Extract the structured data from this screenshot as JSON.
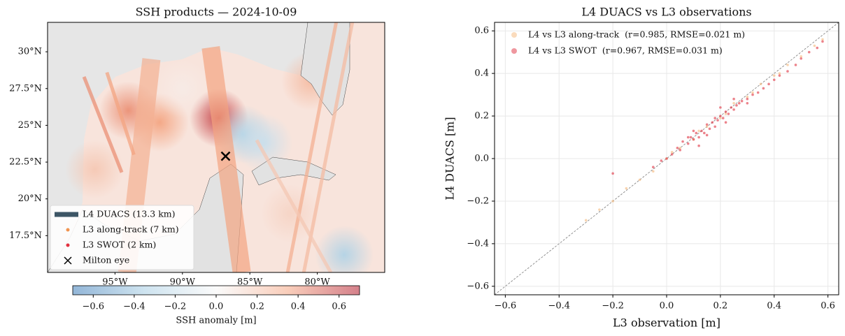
{
  "chart_data": [
    {
      "type": "map",
      "title": "SSH products — 2024-10-09",
      "xlim": [
        -100,
        -75
      ],
      "ylim": [
        15,
        32
      ],
      "xticks": [
        {
          "value": -95,
          "label": "95°W"
        },
        {
          "value": -90,
          "label": "90°W"
        },
        {
          "value": -85,
          "label": "85°W"
        },
        {
          "value": -80,
          "label": "80°W"
        }
      ],
      "yticks": [
        {
          "value": 17.5,
          "label": "17.5°N"
        },
        {
          "value": 20,
          "label": "20°N"
        },
        {
          "value": 22.5,
          "label": "22.5°N"
        },
        {
          "value": 25,
          "label": "25°N"
        },
        {
          "value": 27.5,
          "label": "27.5°N"
        },
        {
          "value": 30,
          "label": "30°N"
        }
      ],
      "anomalies": {
        "x": [
          -87.3,
          -91.7,
          -85.5,
          -84,
          -80.5,
          -94,
          -90,
          -78,
          -96.5,
          -82
        ],
        "y": [
          25.5,
          25.2,
          24.4,
          23.8,
          28,
          26,
          27.5,
          16.2,
          22,
          19
        ],
        "values": [
          0.6,
          0.35,
          -0.3,
          -0.2,
          0.25,
          0.4,
          0.05,
          -0.3,
          0.2,
          0.15
        ]
      },
      "swot_swaths": [
        {
          "lon": [
            -92.3,
            -94.1
          ],
          "lat": [
            29.5,
            15
          ],
          "value": 0.3
        },
        {
          "lon": [
            -87.9,
            -85.6
          ],
          "lat": [
            30.3,
            15
          ],
          "value": 0.35
        }
      ],
      "along_tracks": [
        {
          "lon": [
            -97.3,
            -94.5
          ],
          "lat": [
            28.3,
            21.8
          ],
          "value": 0.4
        },
        {
          "lon": [
            -95.6,
            -93.6
          ],
          "lat": [
            28.6,
            23
          ],
          "value": 0.35
        },
        {
          "lon": [
            -78.6,
            -82.2
          ],
          "lat": [
            32,
            15
          ],
          "value": 0.3
        },
        {
          "lon": [
            -77.4,
            -81
          ],
          "lat": [
            32,
            15
          ],
          "value": 0.25
        },
        {
          "lon": [
            -84.5,
            -79
          ],
          "lat": [
            24,
            15
          ],
          "value": 0.2
        }
      ],
      "eye": {
        "x": -86.8,
        "y": 22.9
      },
      "legend_loc": "lower left",
      "legend": [
        {
          "name": "L4 DUACS (13.3 km)",
          "color": "#3d5666",
          "marker": "line"
        },
        {
          "name": "L3 along-track (7 km)",
          "color": "#f09450",
          "marker": "dot"
        },
        {
          "name": "L3 SWOT (2 km)",
          "color": "#e2313f",
          "marker": "dot"
        },
        {
          "name": "Milton eye",
          "color": "#000000",
          "marker": "x"
        }
      ],
      "colorbar": {
        "label": "SSH anomaly [m]",
        "lim": [
          -0.7,
          0.7
        ],
        "ticks": [
          {
            "value": -0.6,
            "label": "−0.6"
          },
          {
            "value": -0.4,
            "label": "−0.4"
          },
          {
            "value": -0.2,
            "label": "−0.2"
          },
          {
            "value": 0,
            "label": "0.0"
          },
          0.2,
          0.4,
          0.6
        ]
      }
    },
    {
      "type": "scatter",
      "title": "L4 DUACS vs L3 observations",
      "xlabel": "L3 observation [m]",
      "ylabel": "L4 DUACS [m]",
      "xlim": [
        -0.64,
        0.64
      ],
      "ylim": [
        -0.64,
        0.64
      ],
      "xticks": [
        {
          "value": -0.6,
          "label": "−0.6"
        },
        {
          "value": -0.4,
          "label": "−0.4"
        },
        {
          "value": -0.2,
          "label": "−0.2"
        },
        {
          "value": 0,
          "label": "0.0"
        },
        0.2,
        0.4,
        0.6
      ],
      "yticks": [
        {
          "value": -0.6,
          "label": "−0.6"
        },
        {
          "value": -0.4,
          "label": "−0.4"
        },
        {
          "value": -0.2,
          "label": "−0.2"
        },
        {
          "value": 0,
          "label": "0.0"
        },
        0.2,
        0.4,
        0.6
      ],
      "grid": true,
      "identity_line": true,
      "legend_loc": "upper left",
      "series": [
        {
          "name": "L4 vs L3 along-track  (r=0.985, RMSE=0.021 m)",
          "color": "#f5b87a",
          "x": [
            -0.3,
            -0.25,
            -0.2,
            -0.15,
            -0.1,
            -0.05,
            0.0,
            0.05,
            0.1,
            0.15,
            0.2,
            0.25,
            0.3,
            0.35,
            0.4,
            0.45,
            0.5,
            0.55,
            0.58,
            0.02,
            0.12,
            0.22,
            0.32,
            0.42
          ],
          "values": [
            -0.29,
            -0.24,
            -0.2,
            -0.14,
            -0.1,
            -0.06,
            0.0,
            0.05,
            0.09,
            0.15,
            0.19,
            0.26,
            0.29,
            0.35,
            0.39,
            0.44,
            0.48,
            0.53,
            0.56,
            0.03,
            0.13,
            0.21,
            0.31,
            0.4
          ]
        },
        {
          "name": "L4 vs L3 SWOT  (r=0.967, RMSE=0.031 m)",
          "color": "#e03040",
          "x": [
            -0.05,
            -0.02,
            0.0,
            0.02,
            0.04,
            0.05,
            0.06,
            0.08,
            0.09,
            0.1,
            0.11,
            0.12,
            0.13,
            0.14,
            0.15,
            0.16,
            0.17,
            0.18,
            0.19,
            0.2,
            0.21,
            0.22,
            0.23,
            0.24,
            0.25,
            0.26,
            0.27,
            0.28,
            0.3,
            0.32,
            0.34,
            0.36,
            0.38,
            0.4,
            0.42,
            0.45,
            0.48,
            0.5,
            0.53,
            0.56,
            0.58,
            0.2,
            0.15,
            0.1,
            0.12,
            0.08,
            0.18,
            0.22,
            0.25,
            0.3,
            -0.2
          ],
          "values": [
            -0.04,
            -0.01,
            0.0,
            0.02,
            0.05,
            0.04,
            0.08,
            0.07,
            0.1,
            0.09,
            0.12,
            0.1,
            0.13,
            0.12,
            0.16,
            0.14,
            0.17,
            0.19,
            0.18,
            0.2,
            0.19,
            0.22,
            0.21,
            0.24,
            0.23,
            0.25,
            0.26,
            0.27,
            0.28,
            0.3,
            0.31,
            0.33,
            0.35,
            0.37,
            0.39,
            0.41,
            0.44,
            0.47,
            0.5,
            0.52,
            0.55,
            0.24,
            0.11,
            0.13,
            0.06,
            0.1,
            0.15,
            0.17,
            0.28,
            0.26,
            -0.07
          ]
        }
      ]
    }
  ]
}
